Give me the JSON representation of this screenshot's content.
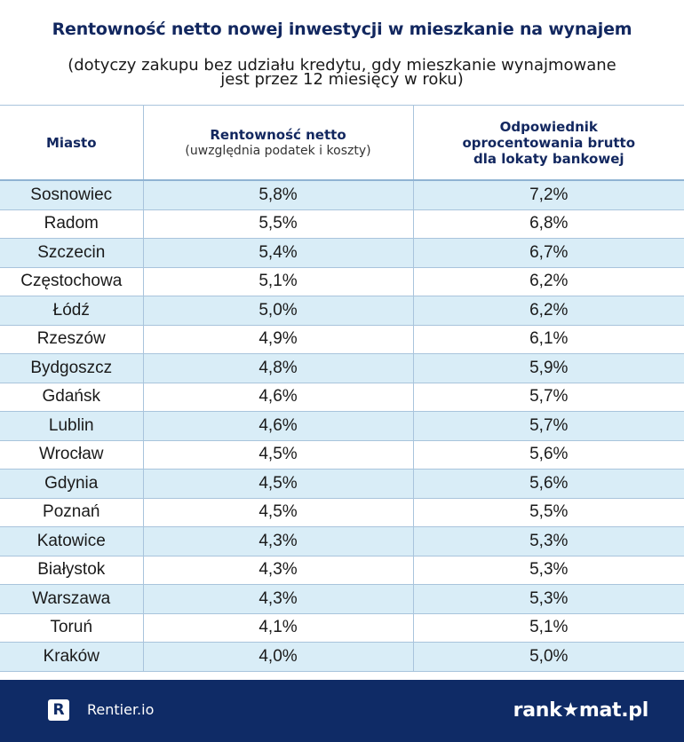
{
  "title": "Rentowność netto nowej inwestycji w mieszkanie na wynajem",
  "subtitle_line1": "(dotyczy zakupu bez udziału kredytu, gdy mieszkanie wynajmowane",
  "subtitle_line2": "jest przez 12 miesięcy w roku)",
  "table": {
    "headers": {
      "city": "Miasto",
      "net_yield": "Rentowność netto",
      "net_yield_sub": "(uwzględnia podatek i koszty)",
      "equivalent_line1": "Odpowiednik",
      "equivalent_line2": "oprocentowania brutto",
      "equivalent_line3": "dla lokaty bankowej"
    },
    "rows": [
      {
        "city": "Sosnowiec",
        "net": "5,8%",
        "gross": "7,2%"
      },
      {
        "city": "Radom",
        "net": "5,5%",
        "gross": "6,8%"
      },
      {
        "city": "Szczecin",
        "net": "5,4%",
        "gross": "6,7%"
      },
      {
        "city": "Częstochowa",
        "net": "5,1%",
        "gross": "6,2%"
      },
      {
        "city": "Łódź",
        "net": "5,0%",
        "gross": "6,2%"
      },
      {
        "city": "Rzeszów",
        "net": "4,9%",
        "gross": "6,1%"
      },
      {
        "city": "Bydgoszcz",
        "net": "4,8%",
        "gross": "5,9%"
      },
      {
        "city": "Gdańsk",
        "net": "4,6%",
        "gross": "5,7%"
      },
      {
        "city": "Lublin",
        "net": "4,6%",
        "gross": "5,7%"
      },
      {
        "city": "Wrocław",
        "net": "4,5%",
        "gross": "5,6%"
      },
      {
        "city": "Gdynia",
        "net": "4,5%",
        "gross": "5,6%"
      },
      {
        "city": "Poznań",
        "net": "4,5%",
        "gross": "5,5%"
      },
      {
        "city": "Katowice",
        "net": "4,3%",
        "gross": "5,3%"
      },
      {
        "city": "Białystok",
        "net": "4,3%",
        "gross": "5,3%"
      },
      {
        "city": "Warszawa",
        "net": "4,3%",
        "gross": "5,3%"
      },
      {
        "city": "Toruń",
        "net": "4,1%",
        "gross": "5,1%"
      },
      {
        "city": "Kraków",
        "net": "4,0%",
        "gross": "5,0%"
      }
    ]
  },
  "footer": {
    "left_logo_letter": "R",
    "left_brand": "Rentier.io",
    "right_brand": "rank★mat.pl"
  },
  "colors": {
    "title": "#12275f",
    "row_highlight": "#d9edf7",
    "footer_bg": "#0f2b66"
  }
}
